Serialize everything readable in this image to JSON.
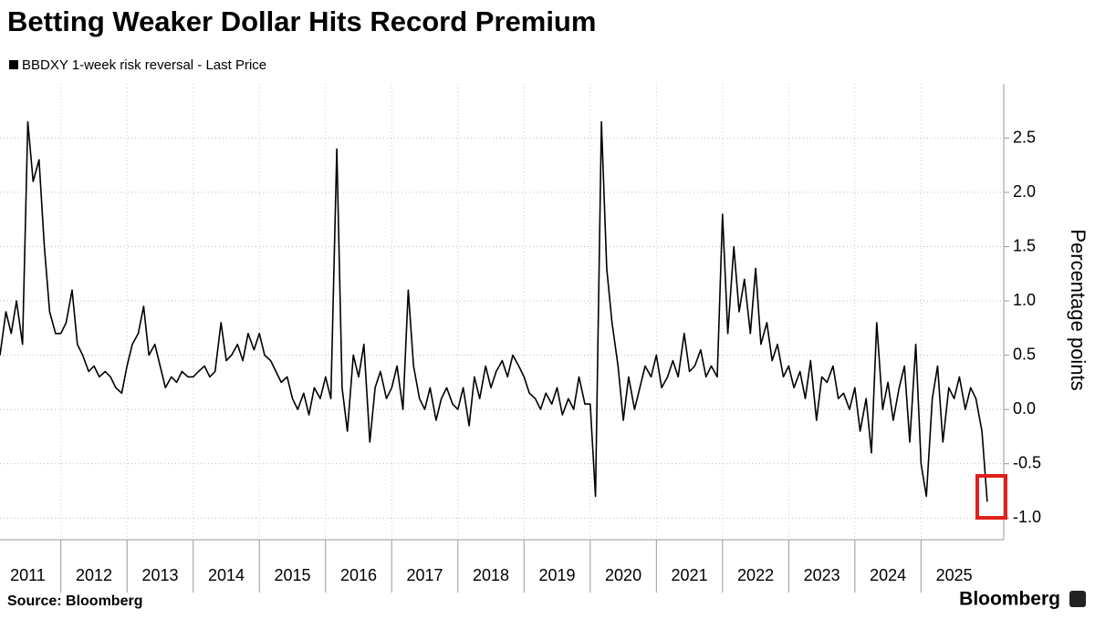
{
  "chart_data": {
    "type": "line",
    "title": "Betting Weaker Dollar Hits Record Premium",
    "ylabel": "Percentage points",
    "source": "Source: Bloomberg",
    "brand": "Bloomberg",
    "series": [
      {
        "name": "BBDXY 1-week risk reversal - Last Price",
        "color": "#000000",
        "values": [
          0.5,
          0.9,
          0.7,
          1.0,
          0.6,
          2.65,
          2.1,
          2.3,
          1.5,
          0.9,
          0.7,
          0.7,
          0.8,
          1.1,
          0.6,
          0.5,
          0.35,
          0.4,
          0.3,
          0.35,
          0.3,
          0.2,
          0.15,
          0.4,
          0.6,
          0.7,
          0.95,
          0.5,
          0.6,
          0.4,
          0.2,
          0.3,
          0.25,
          0.35,
          0.3,
          0.3,
          0.35,
          0.4,
          0.3,
          0.35,
          0.8,
          0.45,
          0.5,
          0.6,
          0.45,
          0.7,
          0.55,
          0.7,
          0.5,
          0.45,
          0.35,
          0.25,
          0.3,
          0.1,
          0.0,
          0.15,
          -0.05,
          0.2,
          0.1,
          0.3,
          0.1,
          2.4,
          0.2,
          -0.2,
          0.5,
          0.3,
          0.6,
          -0.3,
          0.2,
          0.35,
          0.1,
          0.2,
          0.4,
          0.0,
          1.1,
          0.4,
          0.1,
          0.0,
          0.2,
          -0.1,
          0.1,
          0.2,
          0.05,
          0.0,
          0.2,
          -0.15,
          0.3,
          0.1,
          0.4,
          0.2,
          0.35,
          0.45,
          0.3,
          0.5,
          0.4,
          0.3,
          0.15,
          0.1,
          0.0,
          0.15,
          0.05,
          0.2,
          -0.05,
          0.1,
          0.0,
          0.3,
          0.05,
          0.05,
          -0.8,
          2.65,
          1.3,
          0.8,
          0.4,
          -0.1,
          0.3,
          0.0,
          0.2,
          0.4,
          0.3,
          0.5,
          0.2,
          0.3,
          0.45,
          0.3,
          0.7,
          0.35,
          0.4,
          0.55,
          0.3,
          0.4,
          0.3,
          1.8,
          0.7,
          1.5,
          0.9,
          1.2,
          0.7,
          1.3,
          0.6,
          0.8,
          0.45,
          0.6,
          0.3,
          0.4,
          0.2,
          0.35,
          0.1,
          0.45,
          -0.1,
          0.3,
          0.25,
          0.4,
          0.1,
          0.15,
          0.0,
          0.2,
          -0.2,
          0.1,
          -0.4,
          0.8,
          0.0,
          0.25,
          -0.1,
          0.2,
          0.4,
          -0.3,
          0.6,
          -0.5,
          -0.8,
          0.1,
          0.4,
          -0.3,
          0.2,
          0.1,
          0.3,
          0.0,
          0.2,
          0.1,
          -0.2,
          -0.85
        ]
      }
    ],
    "x": [
      2011.08,
      2011.17,
      2011.25,
      2011.33,
      2011.42,
      2011.5,
      2011.58,
      2011.67,
      2011.75,
      2011.83,
      2011.92,
      2012.0,
      2012.08,
      2012.17,
      2012.25,
      2012.33,
      2012.42,
      2012.5,
      2012.58,
      2012.67,
      2012.75,
      2012.83,
      2012.92,
      2013.0,
      2013.08,
      2013.17,
      2013.25,
      2013.33,
      2013.42,
      2013.5,
      2013.58,
      2013.67,
      2013.75,
      2013.83,
      2013.92,
      2014.0,
      2014.08,
      2014.17,
      2014.25,
      2014.33,
      2014.42,
      2014.5,
      2014.58,
      2014.67,
      2014.75,
      2014.83,
      2014.92,
      2015.0,
      2015.08,
      2015.17,
      2015.25,
      2015.33,
      2015.42,
      2015.5,
      2015.58,
      2015.67,
      2015.75,
      2015.83,
      2015.92,
      2016.0,
      2016.08,
      2016.17,
      2016.25,
      2016.33,
      2016.42,
      2016.5,
      2016.58,
      2016.67,
      2016.75,
      2016.83,
      2016.92,
      2017.0,
      2017.08,
      2017.17,
      2017.25,
      2017.33,
      2017.42,
      2017.5,
      2017.58,
      2017.67,
      2017.75,
      2017.83,
      2017.92,
      2018.0,
      2018.08,
      2018.17,
      2018.25,
      2018.33,
      2018.42,
      2018.5,
      2018.58,
      2018.67,
      2018.75,
      2018.83,
      2018.92,
      2019.0,
      2019.08,
      2019.17,
      2019.25,
      2019.33,
      2019.42,
      2019.5,
      2019.58,
      2019.67,
      2019.75,
      2019.83,
      2019.92,
      2020.0,
      2020.08,
      2020.17,
      2020.25,
      2020.33,
      2020.42,
      2020.5,
      2020.58,
      2020.67,
      2020.75,
      2020.83,
      2020.92,
      2021.0,
      2021.08,
      2021.17,
      2021.25,
      2021.33,
      2021.42,
      2021.5,
      2021.58,
      2021.67,
      2021.75,
      2021.83,
      2021.92,
      2022.0,
      2022.08,
      2022.17,
      2022.25,
      2022.33,
      2022.42,
      2022.5,
      2022.58,
      2022.67,
      2022.75,
      2022.83,
      2022.92,
      2023.0,
      2023.08,
      2023.17,
      2023.25,
      2023.33,
      2023.42,
      2023.5,
      2023.58,
      2023.67,
      2023.75,
      2023.83,
      2023.92,
      2024.0,
      2024.08,
      2024.17,
      2024.25,
      2024.33,
      2024.42,
      2024.5,
      2024.58,
      2024.67,
      2024.75,
      2024.83,
      2024.92,
      2025.0,
      2025.08,
      2025.17,
      2025.25,
      2025.33,
      2025.42,
      2025.5,
      2025.58,
      2025.67,
      2025.75,
      2025.83,
      2025.92,
      2026.0
    ],
    "xlim": [
      2011.08,
      2026.25
    ],
    "xticks": [
      2011,
      2012,
      2013,
      2014,
      2015,
      2016,
      2017,
      2018,
      2019,
      2020,
      2021,
      2022,
      2023,
      2024,
      2025
    ],
    "ylim": [
      -1.2,
      3.0
    ],
    "yticks": [
      {
        "value": -1.0,
        "label": "-1.0"
      },
      -0.5,
      {
        "value": 0.0,
        "label": "0.0"
      },
      0.5,
      {
        "value": 1.0,
        "label": "1.0"
      },
      1.5,
      {
        "value": 2.0,
        "label": "2.0"
      },
      2.5
    ],
    "grid": true
  }
}
